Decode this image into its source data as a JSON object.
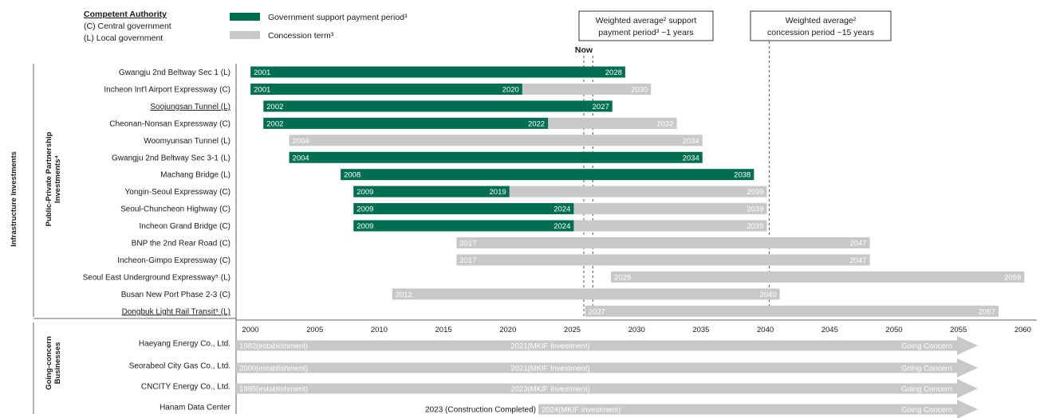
{
  "legend": {
    "authority_title": "Competent Authority",
    "authority_central": "(C) Central government",
    "authority_local": "(L) Local government",
    "gov_support": "Government support payment period³",
    "concession": "Concession term³",
    "gov_color": "#006f51",
    "concession_color": "#c8c8c8"
  },
  "annotations": {
    "support_avg_line1": "Weighted average² support",
    "support_avg_line2": "payment period³ ~1 years",
    "concession_avg_line1": "Weighted average²",
    "concession_avg_line2": "concession period ~15 years",
    "now_label": "Now"
  },
  "side_labels": {
    "infra": "Infrastructure Investments",
    "ppp_line1": "Public-Private Partnership",
    "ppp_line2": "Investments⁴",
    "going_line1": "Going-concern",
    "going_line2": "Businesses"
  },
  "chart_data": {
    "type": "gantt",
    "x_ticks": [
      2000,
      2005,
      2010,
      2015,
      2020,
      2025,
      2030,
      2035,
      2040,
      2045,
      2050,
      2055,
      2060
    ],
    "xlim": [
      1999.5,
      2060.5
    ],
    "now_markers": [
      2025.9,
      2026.6
    ],
    "concession_avg_year": 2040.3,
    "ppp": [
      {
        "name": "Gwangju 2nd Beltway Sec 1 (L)",
        "start": 2001,
        "support_end": 2028,
        "concession_end": 2028,
        "labels": [
          "2001",
          "2028"
        ],
        "ul": false
      },
      {
        "name": "Incheon Int'l Airport Expressway (C)",
        "start": 2001,
        "support_end": 2020,
        "concession_end": 2030,
        "labels": [
          "2001",
          "2020",
          "2030"
        ],
        "ul": false
      },
      {
        "name": "Soojungsan Tunnel (L)",
        "start": 2002,
        "support_end": 2027,
        "concession_end": 2027,
        "labels": [
          "2002",
          "2027"
        ],
        "ul": true
      },
      {
        "name": "Cheonan-Nonsan Expressway (C)",
        "start": 2002,
        "support_end": 2022,
        "concession_end": 2032,
        "labels": [
          "2002",
          "2022",
          "2032"
        ],
        "ul": false
      },
      {
        "name": "Woomyunsan Tunnel (L)",
        "start": 2004,
        "support_end": null,
        "concession_end": 2034,
        "labels": [
          "2004",
          "2034"
        ],
        "ul": false
      },
      {
        "name": "Gwangju 2nd Beltway Sec 3-1 (L)",
        "start": 2004,
        "support_end": 2034,
        "concession_end": 2034,
        "labels": [
          "2004",
          "2034"
        ],
        "ul": false
      },
      {
        "name": "Machang Bridge (L)",
        "start": 2008,
        "support_end": 2038,
        "concession_end": 2038,
        "labels": [
          "2008",
          "2038"
        ],
        "ul": false
      },
      {
        "name": "Yongin-Seoul Expressway (C)",
        "start": 2009,
        "support_end": 2019,
        "concession_end": 2039,
        "labels": [
          "2009",
          "2019",
          "2039"
        ],
        "ul": false
      },
      {
        "name": "Seoul-Chuncheon Highway (C)",
        "start": 2009,
        "support_end": 2024,
        "concession_end": 2039,
        "labels": [
          "2009",
          "2024",
          "2039"
        ],
        "ul": false
      },
      {
        "name": "Incheon Grand Bridge (C)",
        "start": 2009,
        "support_end": 2024,
        "concession_end": 2039,
        "labels": [
          "2009",
          "2024",
          "2039"
        ],
        "ul": false
      },
      {
        "name": "BNP the 2nd Rear Road (C)",
        "start": 2017,
        "support_end": null,
        "concession_end": 2047,
        "labels": [
          "2017",
          "2047"
        ],
        "ul": false
      },
      {
        "name": "Incheon-Gimpo Expressway (C)",
        "start": 2017,
        "support_end": null,
        "concession_end": 2047,
        "labels": [
          "2017",
          "2047"
        ],
        "ul": false
      },
      {
        "name": "Seoul East Underground Expressway⁵ (L)",
        "start": 2029,
        "support_end": null,
        "concession_end": 2059,
        "labels": [
          "2029",
          "2059"
        ],
        "ul": false
      },
      {
        "name": "Busan New Port Phase 2-3 (C)",
        "start": 2012,
        "support_end": null,
        "concession_end": 2040,
        "labels": [
          "2012",
          "2040"
        ],
        "ul": false
      },
      {
        "name": "Dongbuk Light Rail Transit⁵ (L)",
        "start": 2027,
        "support_end": null,
        "concession_end": 2057,
        "labels": [
          "2027",
          "2057"
        ],
        "ul": true
      }
    ],
    "going_concern": [
      {
        "name": "Haeyang Energy Co., Ltd.",
        "start_label": "1982(establishment)",
        "mid_label": "2021(MKIF Investment)",
        "end_label": "Going Concern"
      },
      {
        "name": "Seorabeol City Gas Co., Ltd.",
        "start_label": "2000(establishment)",
        "mid_label": "2021(MKIF Investment)",
        "end_label": "Going Concern"
      },
      {
        "name": "CNCITY Energy Co., Ltd.",
        "start_label": "1985(establishment)",
        "mid_label": "2023(MKIF Investment)",
        "end_label": "Going Concern"
      },
      {
        "name": "Hanam Data Center",
        "start_label": "2023 (Construction Completed)",
        "mid_label": "2024(MKIF Investment)",
        "end_label": "Going Concern"
      }
    ]
  }
}
